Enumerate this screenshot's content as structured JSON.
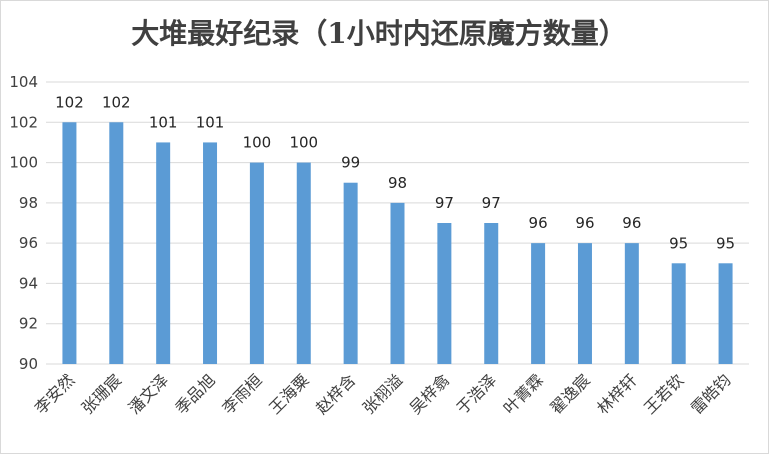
{
  "chart_data": {
    "type": "bar",
    "title": "大堆最好纪录（1小时内还原魔方数量）",
    "xlabel": "",
    "ylabel": "",
    "categories": [
      "李安然",
      "张珊宸",
      "潘文泽",
      "季品旭",
      "李雨桓",
      "王海粟",
      "赵梓含",
      "张栩溢",
      "吴梓翕",
      "于浩泽",
      "叶菁霖",
      "翟逸宸",
      "林梓轩",
      "王若钦",
      "雷皓钧"
    ],
    "values": [
      102,
      102,
      101,
      101,
      100,
      100,
      99,
      98,
      97,
      97,
      96,
      96,
      96,
      95,
      95
    ],
    "ylim": [
      90,
      104
    ],
    "yticks": [
      90,
      92,
      94,
      96,
      98,
      100,
      102,
      104
    ],
    "grid": true,
    "legend": "none",
    "bar_color": "#5B9BD5",
    "data_labels": true
  }
}
